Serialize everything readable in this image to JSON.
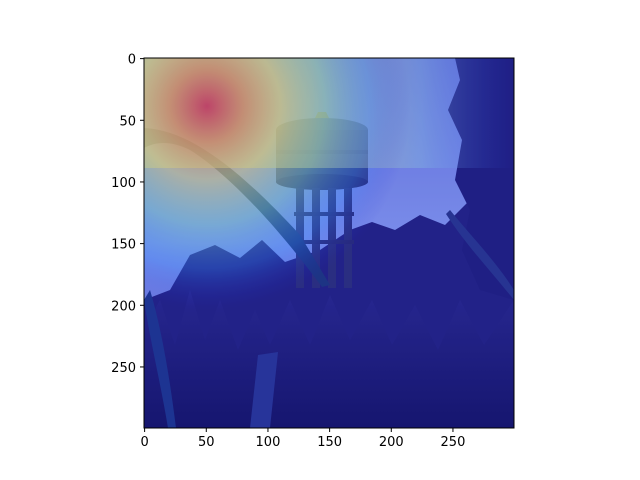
{
  "figure": {
    "background": "#ffffff",
    "axes_color": "#000000"
  },
  "image": {
    "description_tags": [
      "water-tower",
      "trees",
      "tall-grass",
      "sky",
      "heatmap-overlay"
    ],
    "colormap": "jet",
    "hotspot_color": "#e83030",
    "cool_color": "#1010c0"
  },
  "axes": {
    "x_range": [
      0,
      299
    ],
    "y_range": [
      0,
      299
    ],
    "y_inverted": true,
    "x_ticks": [
      {
        "value": 0,
        "label": "0"
      },
      {
        "value": 50,
        "label": "50"
      },
      {
        "value": 100,
        "label": "100"
      },
      {
        "value": 150,
        "label": "150"
      },
      {
        "value": 200,
        "label": "200"
      },
      {
        "value": 250,
        "label": "250"
      }
    ],
    "y_ticks": [
      {
        "value": 0,
        "label": "0"
      },
      {
        "value": 50,
        "label": "50"
      },
      {
        "value": 100,
        "label": "100"
      },
      {
        "value": 150,
        "label": "150"
      },
      {
        "value": 200,
        "label": "200"
      },
      {
        "value": 250,
        "label": "250"
      }
    ]
  }
}
